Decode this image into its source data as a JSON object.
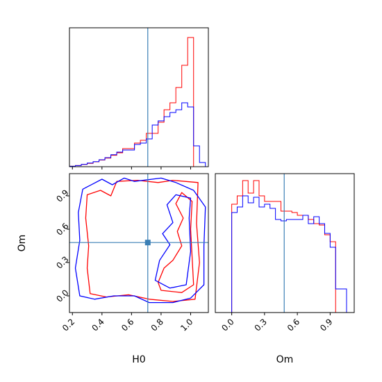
{
  "colors": {
    "series_red": "#ff0000",
    "series_blue": "#0000ff",
    "truth": "#3a7fb5"
  },
  "chart_data": [
    {
      "type": "histogram",
      "panel": "top-left",
      "parameter": "H0",
      "xlim": [
        0.18,
        1.12
      ],
      "ylim": [
        0,
        1
      ],
      "grid": false,
      "truth": 0.71,
      "bin_edges": [
        0.18,
        0.22,
        0.26,
        0.3,
        0.34,
        0.38,
        0.42,
        0.46,
        0.5,
        0.54,
        0.58,
        0.62,
        0.66,
        0.7,
        0.74,
        0.78,
        0.82,
        0.86,
        0.9,
        0.94,
        0.98,
        1.02,
        1.06,
        1.1
      ],
      "series": [
        {
          "color": "series_red",
          "values": [
            0.003,
            0.008,
            0.016,
            0.024,
            0.035,
            0.048,
            0.062,
            0.082,
            0.1,
            0.13,
            0.13,
            0.17,
            0.19,
            0.24,
            0.24,
            0.32,
            0.41,
            0.46,
            0.57,
            0.73,
            0.93,
            0,
            0
          ]
        },
        {
          "color": "series_blue",
          "values": [
            0.003,
            0.008,
            0.017,
            0.026,
            0.036,
            0.05,
            0.065,
            0.086,
            0.105,
            0.12,
            0.12,
            0.16,
            0.17,
            0.2,
            0.3,
            0.33,
            0.36,
            0.39,
            0.41,
            0.46,
            0.43,
            0.15,
            0.03
          ]
        }
      ],
      "xticks": [
        0.2,
        0.4,
        0.6,
        0.8,
        1.0
      ]
    },
    {
      "type": "contour",
      "panel": "bottom-left",
      "xlabel": "H0",
      "ylabel": "Om",
      "xlim": [
        0.18,
        1.12
      ],
      "ylim": [
        -0.15,
        1.1
      ],
      "xticks": [
        0.2,
        0.4,
        0.6,
        0.8,
        1.0
      ],
      "yticks": [
        0.0,
        0.3,
        0.6,
        0.9
      ],
      "xtick_labels": [
        "0.2",
        "0.4",
        "0.6",
        "0.8",
        "1.0"
      ],
      "ytick_labels": [
        "0.0",
        "0.3",
        "0.6",
        "0.9"
      ],
      "grid": false,
      "truth": {
        "x": 0.71,
        "y": 0.48
      },
      "contours": [
        {
          "color": "series_red",
          "level": "outer",
          "points": [
            [
              0.32,
              0.02
            ],
            [
              0.43,
              -0.01
            ],
            [
              0.58,
              0.01
            ],
            [
              0.72,
              -0.03
            ],
            [
              0.88,
              -0.05
            ],
            [
              1.03,
              -0.03
            ],
            [
              1.06,
              0.3
            ],
            [
              1.04,
              0.65
            ],
            [
              1.05,
              1.02
            ],
            [
              0.88,
              1.04
            ],
            [
              0.78,
              1.02
            ],
            [
              0.64,
              1.04
            ],
            [
              0.5,
              1.03
            ],
            [
              0.46,
              0.9
            ],
            [
              0.39,
              0.95
            ],
            [
              0.3,
              0.91
            ],
            [
              0.29,
              0.7
            ],
            [
              0.31,
              0.45
            ],
            [
              0.3,
              0.25
            ]
          ]
        },
        {
          "color": "series_red",
          "level": "inner",
          "points": [
            [
              0.8,
              0.05
            ],
            [
              0.94,
              0.03
            ],
            [
              1.02,
              0.1
            ],
            [
              1.01,
              0.35
            ],
            [
              1.0,
              0.6
            ],
            [
              1.01,
              0.85
            ],
            [
              0.94,
              0.93
            ],
            [
              0.9,
              0.83
            ],
            [
              0.95,
              0.7
            ],
            [
              0.91,
              0.58
            ],
            [
              0.94,
              0.45
            ],
            [
              0.88,
              0.32
            ],
            [
              0.82,
              0.25
            ],
            [
              0.78,
              0.12
            ]
          ]
        },
        {
          "color": "series_blue",
          "level": "outer",
          "points": [
            [
              0.25,
              0.0
            ],
            [
              0.35,
              -0.03
            ],
            [
              0.48,
              0.0
            ],
            [
              0.62,
              0.0
            ],
            [
              0.72,
              -0.06
            ],
            [
              0.88,
              -0.06
            ],
            [
              1.0,
              -0.02
            ],
            [
              1.09,
              0.1
            ],
            [
              1.09,
              0.45
            ],
            [
              1.1,
              0.8
            ],
            [
              1.02,
              0.95
            ],
            [
              0.9,
              1.02
            ],
            [
              0.8,
              1.06
            ],
            [
              0.62,
              1.03
            ],
            [
              0.55,
              1.06
            ],
            [
              0.47,
              1.0
            ],
            [
              0.4,
              1.05
            ],
            [
              0.27,
              0.96
            ],
            [
              0.24,
              0.75
            ],
            [
              0.25,
              0.5
            ],
            [
              0.22,
              0.25
            ]
          ]
        },
        {
          "color": "series_blue",
          "level": "inner",
          "points": [
            [
              0.76,
              0.14
            ],
            [
              0.86,
              0.07
            ],
            [
              0.97,
              0.1
            ],
            [
              1.0,
              0.4
            ],
            [
              0.99,
              0.7
            ],
            [
              1.0,
              0.88
            ],
            [
              0.9,
              0.91
            ],
            [
              0.84,
              0.82
            ],
            [
              0.88,
              0.66
            ],
            [
              0.81,
              0.56
            ],
            [
              0.86,
              0.46
            ],
            [
              0.79,
              0.32
            ]
          ]
        }
      ]
    },
    {
      "type": "histogram",
      "panel": "bottom-right",
      "xlabel": "Om",
      "xlim": [
        -0.15,
        1.12
      ],
      "ylim": [
        0,
        1
      ],
      "grid": false,
      "truth": 0.48,
      "xticks": [
        0.0,
        0.3,
        0.6,
        0.9
      ],
      "xtick_labels": [
        "0.0",
        "0.3",
        "0.6",
        "0.9"
      ],
      "bin_edges": [
        -0.15,
        -0.1,
        -0.05,
        0.0,
        0.05,
        0.1,
        0.15,
        0.2,
        0.25,
        0.3,
        0.35,
        0.4,
        0.45,
        0.5,
        0.55,
        0.6,
        0.65,
        0.7,
        0.75,
        0.8,
        0.85,
        0.9,
        0.95,
        1.0,
        1.05,
        1.1
      ],
      "series": [
        {
          "color": "series_red",
          "values": [
            0,
            0,
            0,
            0.78,
            0.84,
            0.95,
            0.86,
            0.95,
            0.84,
            0.8,
            0.8,
            0.8,
            0.73,
            0.73,
            0.72,
            0.7,
            0.7,
            0.67,
            0.64,
            0.63,
            0.56,
            0.51,
            0,
            0,
            0
          ]
        },
        {
          "color": "series_blue",
          "values": [
            0,
            0,
            0,
            0.72,
            0.76,
            0.84,
            0.79,
            0.83,
            0.76,
            0.78,
            0.75,
            0.67,
            0.66,
            0.67,
            0.67,
            0.67,
            0.7,
            0.64,
            0.69,
            0.64,
            0.57,
            0.47,
            0.17,
            0.17,
            0
          ]
        }
      ]
    }
  ]
}
